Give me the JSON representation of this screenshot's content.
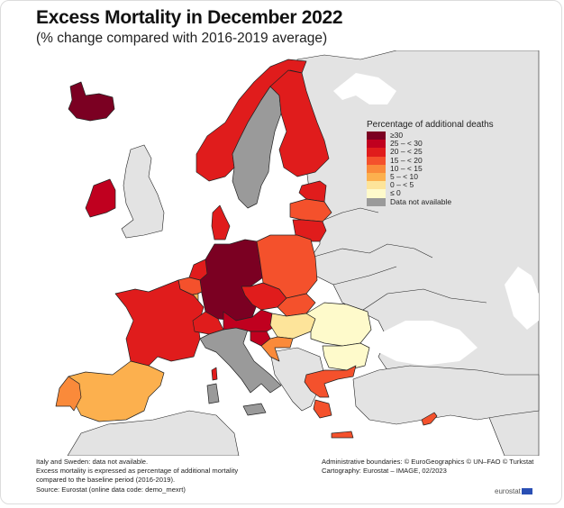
{
  "title": "Excess Mortality in December 2022",
  "subtitle": "(% change compared with 2016-2019 average)",
  "legend": {
    "title": "Percentage of additional deaths",
    "items": [
      {
        "label": "≥30",
        "color": "#7b0022"
      },
      {
        "label": "25 – < 30",
        "color": "#c0001f"
      },
      {
        "label": "20 – < 25",
        "color": "#e01c1c"
      },
      {
        "label": "15 – < 20",
        "color": "#f4512c"
      },
      {
        "label": "10 – < 15",
        "color": "#fa8a3a"
      },
      {
        "label": "5 – < 10",
        "color": "#fcb04e"
      },
      {
        "label": "0 – < 5",
        "color": "#fde49a"
      },
      {
        "label": "≤ 0",
        "color": "#fefacb"
      },
      {
        "label": "Data not available",
        "color": "#9a9a9a"
      }
    ]
  },
  "map": {
    "background_land_color": "#e3e3e3",
    "countries": {
      "iceland": "≥30",
      "ireland": "25 – < 30",
      "norway": "20 – < 25",
      "sweden": "Data not available",
      "finland": "20 – < 25",
      "estonia": "20 – < 25",
      "latvia": "15 – < 20",
      "lithuania": "20 – < 25",
      "denmark": "20 – < 25",
      "germany": "≥30",
      "netherlands": "20 – < 25",
      "belgium": "15 – < 20",
      "luxembourg": "5 – < 10",
      "france": "20 – < 25",
      "spain": "5 – < 10",
      "portugal": "10 – < 15",
      "italy": "Data not available",
      "switzerland": "20 – < 25",
      "austria": "25 – < 30",
      "czechia": "20 – < 25",
      "poland": "15 – < 20",
      "slovakia": "15 – < 20",
      "hungary": "0 – < 5",
      "slovenia": "25 – < 30",
      "croatia": "10 – < 15",
      "romania": "≤ 0",
      "bulgaria": "≤ 0",
      "greece": "15 – < 20",
      "cyprus": "15 – < 20"
    }
  },
  "footnotes_left": [
    "Italy and Sweden: data not available.",
    "Excess mortality is expressed as percentage of additional mortality",
    "compared to the baseline period (2016-2019).",
    "Source: Eurostat (online data code: demo_mexrt)"
  ],
  "footnotes_right": [
    "Administrative boundaries: © EuroGeographics © UN–FAO © Turkstat",
    "Cartography: Eurostat – IMAGE, 02/2023"
  ],
  "logo_text": "eurostat"
}
